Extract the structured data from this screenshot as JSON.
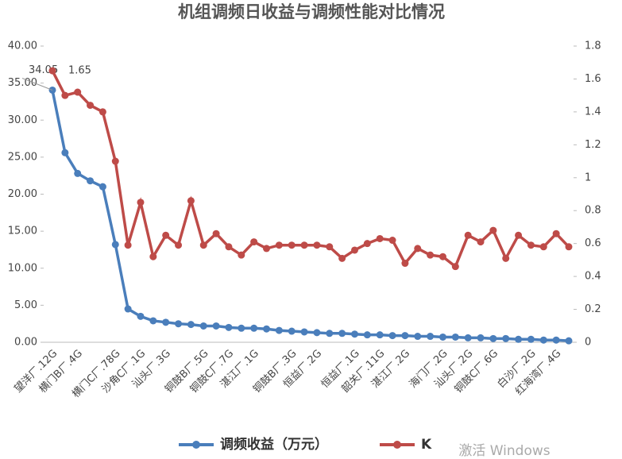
{
  "chart_data": {
    "type": "line",
    "title": "机组调频日收益与调频性能对比情况",
    "categories": [
      "望洋厂.12G",
      null,
      "横门B厂.4G",
      null,
      null,
      "横门C厂.78G",
      null,
      "沙角C厂.1G",
      null,
      "汕头厂.3G",
      null,
      null,
      "铜鼓B厂.5G",
      null,
      "铜鼓C厂.7G",
      null,
      "湛江厂.1G",
      null,
      null,
      "铜鼓B厂.3G",
      null,
      "恒益厂.2G",
      null,
      null,
      "恒益厂.1G",
      null,
      "韶关厂.11G",
      null,
      "湛江厂.2G",
      null,
      null,
      "海门厂.2G",
      null,
      "汕头厂.2G",
      null,
      "铜鼓C厂.6G",
      null,
      null,
      "白沙厂.2G",
      null,
      "红海湾厂.4G",
      null
    ],
    "series": [
      {
        "name": "调频收益（万元）",
        "color": "#4a7ebb",
        "values": [
          34.05,
          25.6,
          22.8,
          21.8,
          21.0,
          13.2,
          4.5,
          3.5,
          2.9,
          2.7,
          2.5,
          2.4,
          2.2,
          2.2,
          2.0,
          1.9,
          1.9,
          1.8,
          1.6,
          1.5,
          1.4,
          1.3,
          1.2,
          1.2,
          1.1,
          1.0,
          1.0,
          0.9,
          0.9,
          0.8,
          0.8,
          0.7,
          0.7,
          0.6,
          0.6,
          0.5,
          0.5,
          0.4,
          0.4,
          0.3,
          0.3,
          0.2
        ]
      },
      {
        "name": "K",
        "color": "#be4b48",
        "axis": "y2",
        "values": [
          1.65,
          1.5,
          1.52,
          1.44,
          1.4,
          1.1,
          0.59,
          0.85,
          0.52,
          0.65,
          0.59,
          0.86,
          0.59,
          0.66,
          0.58,
          0.53,
          0.61,
          0.57,
          0.59,
          0.59,
          0.59,
          0.59,
          0.58,
          0.51,
          0.56,
          0.6,
          0.63,
          0.62,
          0.48,
          0.57,
          0.53,
          0.52,
          0.46,
          0.65,
          0.61,
          0.68,
          0.51,
          0.65,
          0.59,
          0.58,
          0.66,
          0.58
        ]
      }
    ],
    "ylim": [
      0,
      40
    ],
    "yticks": [
      {
        "value": 0,
        "label": "0.00"
      },
      {
        "value": 5,
        "label": "5.00"
      },
      {
        "value": 10,
        "label": "10.00"
      },
      {
        "value": 15,
        "label": "15.00"
      },
      {
        "value": 20,
        "label": "20.00"
      },
      {
        "value": 25,
        "label": "25.00"
      },
      {
        "value": 30,
        "label": "30.00"
      },
      {
        "value": 35,
        "label": "35.00"
      },
      {
        "value": 40,
        "label": "40.00"
      }
    ],
    "y2lim": [
      0,
      1.8
    ],
    "y2ticks": [
      0,
      0.2,
      0.4,
      0.6,
      0.8,
      1,
      1.2,
      1.4,
      1.6,
      1.8
    ],
    "watermark": "激活 Windows"
  }
}
